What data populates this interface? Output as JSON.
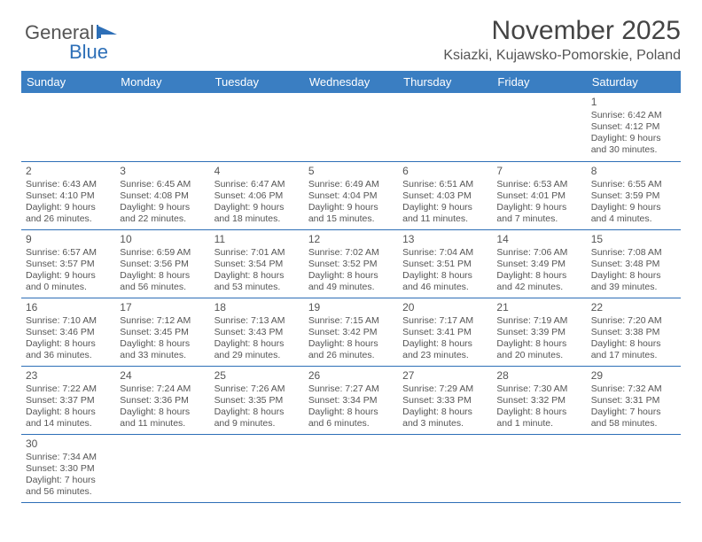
{
  "logo": {
    "text1": "General",
    "text2": "Blue"
  },
  "title": "November 2025",
  "location": "Ksiazki, Kujawsko-Pomorskie, Poland",
  "colors": {
    "header_bg": "#3a7ec2",
    "header_text": "#ffffff",
    "row_divider": "#2d6fb7",
    "cell_border": "#b8b8b8",
    "text": "#555555",
    "background": "#ffffff"
  },
  "typography": {
    "title_fontsize": 30,
    "location_fontsize": 16,
    "dayheader_fontsize": 13,
    "cell_fontsize": 10.5,
    "daynum_fontsize": 12
  },
  "day_headers": [
    "Sunday",
    "Monday",
    "Tuesday",
    "Wednesday",
    "Thursday",
    "Friday",
    "Saturday"
  ],
  "weeks": [
    [
      null,
      null,
      null,
      null,
      null,
      null,
      {
        "n": "1",
        "sr": "Sunrise: 6:42 AM",
        "ss": "Sunset: 4:12 PM",
        "d1": "Daylight: 9 hours",
        "d2": "and 30 minutes."
      }
    ],
    [
      {
        "n": "2",
        "sr": "Sunrise: 6:43 AM",
        "ss": "Sunset: 4:10 PM",
        "d1": "Daylight: 9 hours",
        "d2": "and 26 minutes."
      },
      {
        "n": "3",
        "sr": "Sunrise: 6:45 AM",
        "ss": "Sunset: 4:08 PM",
        "d1": "Daylight: 9 hours",
        "d2": "and 22 minutes."
      },
      {
        "n": "4",
        "sr": "Sunrise: 6:47 AM",
        "ss": "Sunset: 4:06 PM",
        "d1": "Daylight: 9 hours",
        "d2": "and 18 minutes."
      },
      {
        "n": "5",
        "sr": "Sunrise: 6:49 AM",
        "ss": "Sunset: 4:04 PM",
        "d1": "Daylight: 9 hours",
        "d2": "and 15 minutes."
      },
      {
        "n": "6",
        "sr": "Sunrise: 6:51 AM",
        "ss": "Sunset: 4:03 PM",
        "d1": "Daylight: 9 hours",
        "d2": "and 11 minutes."
      },
      {
        "n": "7",
        "sr": "Sunrise: 6:53 AM",
        "ss": "Sunset: 4:01 PM",
        "d1": "Daylight: 9 hours",
        "d2": "and 7 minutes."
      },
      {
        "n": "8",
        "sr": "Sunrise: 6:55 AM",
        "ss": "Sunset: 3:59 PM",
        "d1": "Daylight: 9 hours",
        "d2": "and 4 minutes."
      }
    ],
    [
      {
        "n": "9",
        "sr": "Sunrise: 6:57 AM",
        "ss": "Sunset: 3:57 PM",
        "d1": "Daylight: 9 hours",
        "d2": "and 0 minutes."
      },
      {
        "n": "10",
        "sr": "Sunrise: 6:59 AM",
        "ss": "Sunset: 3:56 PM",
        "d1": "Daylight: 8 hours",
        "d2": "and 56 minutes."
      },
      {
        "n": "11",
        "sr": "Sunrise: 7:01 AM",
        "ss": "Sunset: 3:54 PM",
        "d1": "Daylight: 8 hours",
        "d2": "and 53 minutes."
      },
      {
        "n": "12",
        "sr": "Sunrise: 7:02 AM",
        "ss": "Sunset: 3:52 PM",
        "d1": "Daylight: 8 hours",
        "d2": "and 49 minutes."
      },
      {
        "n": "13",
        "sr": "Sunrise: 7:04 AM",
        "ss": "Sunset: 3:51 PM",
        "d1": "Daylight: 8 hours",
        "d2": "and 46 minutes."
      },
      {
        "n": "14",
        "sr": "Sunrise: 7:06 AM",
        "ss": "Sunset: 3:49 PM",
        "d1": "Daylight: 8 hours",
        "d2": "and 42 minutes."
      },
      {
        "n": "15",
        "sr": "Sunrise: 7:08 AM",
        "ss": "Sunset: 3:48 PM",
        "d1": "Daylight: 8 hours",
        "d2": "and 39 minutes."
      }
    ],
    [
      {
        "n": "16",
        "sr": "Sunrise: 7:10 AM",
        "ss": "Sunset: 3:46 PM",
        "d1": "Daylight: 8 hours",
        "d2": "and 36 minutes."
      },
      {
        "n": "17",
        "sr": "Sunrise: 7:12 AM",
        "ss": "Sunset: 3:45 PM",
        "d1": "Daylight: 8 hours",
        "d2": "and 33 minutes."
      },
      {
        "n": "18",
        "sr": "Sunrise: 7:13 AM",
        "ss": "Sunset: 3:43 PM",
        "d1": "Daylight: 8 hours",
        "d2": "and 29 minutes."
      },
      {
        "n": "19",
        "sr": "Sunrise: 7:15 AM",
        "ss": "Sunset: 3:42 PM",
        "d1": "Daylight: 8 hours",
        "d2": "and 26 minutes."
      },
      {
        "n": "20",
        "sr": "Sunrise: 7:17 AM",
        "ss": "Sunset: 3:41 PM",
        "d1": "Daylight: 8 hours",
        "d2": "and 23 minutes."
      },
      {
        "n": "21",
        "sr": "Sunrise: 7:19 AM",
        "ss": "Sunset: 3:39 PM",
        "d1": "Daylight: 8 hours",
        "d2": "and 20 minutes."
      },
      {
        "n": "22",
        "sr": "Sunrise: 7:20 AM",
        "ss": "Sunset: 3:38 PM",
        "d1": "Daylight: 8 hours",
        "d2": "and 17 minutes."
      }
    ],
    [
      {
        "n": "23",
        "sr": "Sunrise: 7:22 AM",
        "ss": "Sunset: 3:37 PM",
        "d1": "Daylight: 8 hours",
        "d2": "and 14 minutes."
      },
      {
        "n": "24",
        "sr": "Sunrise: 7:24 AM",
        "ss": "Sunset: 3:36 PM",
        "d1": "Daylight: 8 hours",
        "d2": "and 11 minutes."
      },
      {
        "n": "25",
        "sr": "Sunrise: 7:26 AM",
        "ss": "Sunset: 3:35 PM",
        "d1": "Daylight: 8 hours",
        "d2": "and 9 minutes."
      },
      {
        "n": "26",
        "sr": "Sunrise: 7:27 AM",
        "ss": "Sunset: 3:34 PM",
        "d1": "Daylight: 8 hours",
        "d2": "and 6 minutes."
      },
      {
        "n": "27",
        "sr": "Sunrise: 7:29 AM",
        "ss": "Sunset: 3:33 PM",
        "d1": "Daylight: 8 hours",
        "d2": "and 3 minutes."
      },
      {
        "n": "28",
        "sr": "Sunrise: 7:30 AM",
        "ss": "Sunset: 3:32 PM",
        "d1": "Daylight: 8 hours",
        "d2": "and 1 minute."
      },
      {
        "n": "29",
        "sr": "Sunrise: 7:32 AM",
        "ss": "Sunset: 3:31 PM",
        "d1": "Daylight: 7 hours",
        "d2": "and 58 minutes."
      }
    ],
    [
      {
        "n": "30",
        "sr": "Sunrise: 7:34 AM",
        "ss": "Sunset: 3:30 PM",
        "d1": "Daylight: 7 hours",
        "d2": "and 56 minutes."
      },
      null,
      null,
      null,
      null,
      null,
      null
    ]
  ]
}
